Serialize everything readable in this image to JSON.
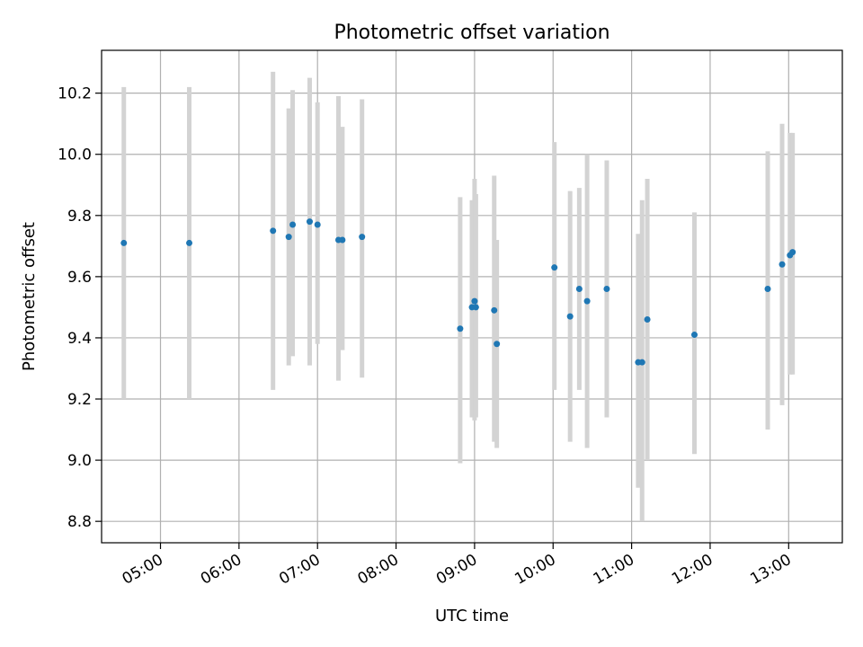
{
  "chart_data": {
    "type": "scatter",
    "title": "Photometric offset variation",
    "xlabel": "UTC time",
    "ylabel": "Photometric offset",
    "x_unit": "UTC time (HH:MM)",
    "xlim": [
      "04:15",
      "13:41"
    ],
    "ylim": [
      8.73,
      10.34
    ],
    "xticks": [
      "05:00",
      "06:00",
      "07:00",
      "08:00",
      "09:00",
      "10:00",
      "11:00",
      "12:00",
      "13:00"
    ],
    "yticks": [
      "8.8",
      "9.0",
      "9.2",
      "9.4",
      "9.6",
      "9.8",
      "10.0",
      "10.2"
    ],
    "grid": true,
    "colors": {
      "points": "#1f77b4",
      "errorbars": "#d3d3d3",
      "grid": "#b0b0b0",
      "axes": "#000000"
    },
    "points": [
      {
        "x": "04:32",
        "y": 9.71,
        "ylow": 9.2,
        "yhigh": 10.22
      },
      {
        "x": "05:22",
        "y": 9.71,
        "ylow": 9.2,
        "yhigh": 10.22
      },
      {
        "x": "06:26",
        "y": 9.75,
        "ylow": 9.23,
        "yhigh": 10.27
      },
      {
        "x": "06:38",
        "y": 9.73,
        "ylow": 9.31,
        "yhigh": 10.15
      },
      {
        "x": "06:41",
        "y": 9.77,
        "ylow": 9.34,
        "yhigh": 10.21
      },
      {
        "x": "06:54",
        "y": 9.78,
        "ylow": 9.31,
        "yhigh": 10.25
      },
      {
        "x": "07:00",
        "y": 9.77,
        "ylow": 9.38,
        "yhigh": 10.17
      },
      {
        "x": "07:16",
        "y": 9.72,
        "ylow": 9.26,
        "yhigh": 10.19
      },
      {
        "x": "07:19",
        "y": 9.72,
        "ylow": 9.36,
        "yhigh": 10.09
      },
      {
        "x": "07:34",
        "y": 9.73,
        "ylow": 9.27,
        "yhigh": 10.18
      },
      {
        "x": "08:49",
        "y": 9.43,
        "ylow": 8.99,
        "yhigh": 9.86
      },
      {
        "x": "08:58",
        "y": 9.5,
        "ylow": 9.14,
        "yhigh": 9.85
      },
      {
        "x": "09:00",
        "y": 9.52,
        "ylow": 9.13,
        "yhigh": 9.92
      },
      {
        "x": "09:01",
        "y": 9.5,
        "ylow": 9.14,
        "yhigh": 9.87
      },
      {
        "x": "09:15",
        "y": 9.49,
        "ylow": 9.06,
        "yhigh": 9.93
      },
      {
        "x": "09:17",
        "y": 9.38,
        "ylow": 9.04,
        "yhigh": 9.72
      },
      {
        "x": "10:01",
        "y": 9.63,
        "ylow": 9.23,
        "yhigh": 10.04
      },
      {
        "x": "10:13",
        "y": 9.47,
        "ylow": 9.06,
        "yhigh": 9.88
      },
      {
        "x": "10:20",
        "y": 9.56,
        "ylow": 9.23,
        "yhigh": 9.89
      },
      {
        "x": "10:26",
        "y": 9.52,
        "ylow": 9.04,
        "yhigh": 10.0
      },
      {
        "x": "10:41",
        "y": 9.56,
        "ylow": 9.14,
        "yhigh": 9.98
      },
      {
        "x": "11:05",
        "y": 9.32,
        "ylow": 8.91,
        "yhigh": 9.74
      },
      {
        "x": "11:08",
        "y": 9.32,
        "ylow": 8.8,
        "yhigh": 9.85
      },
      {
        "x": "11:12",
        "y": 9.46,
        "ylow": 9.0,
        "yhigh": 9.92
      },
      {
        "x": "11:48",
        "y": 9.41,
        "ylow": 9.02,
        "yhigh": 9.81
      },
      {
        "x": "12:44",
        "y": 9.56,
        "ylow": 9.1,
        "yhigh": 10.01
      },
      {
        "x": "12:55",
        "y": 9.64,
        "ylow": 9.18,
        "yhigh": 10.1
      },
      {
        "x": "13:01",
        "y": 9.67,
        "ylow": 9.28,
        "yhigh": 10.07
      },
      {
        "x": "13:03",
        "y": 9.68,
        "ylow": 9.28,
        "yhigh": 10.07
      }
    ]
  }
}
